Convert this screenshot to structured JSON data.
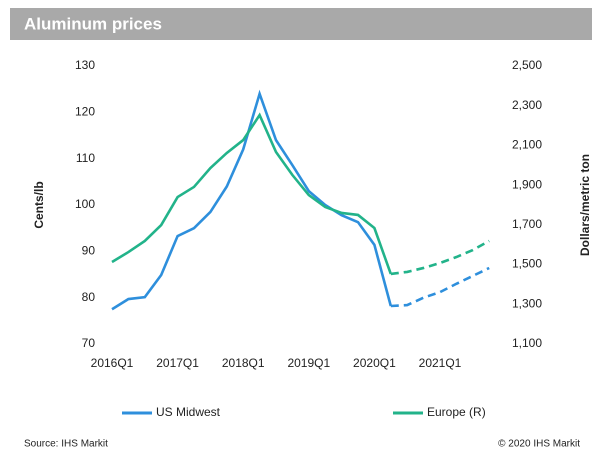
{
  "chart_data": {
    "type": "line",
    "title": "Aluminum prices",
    "y_label": "Cents/lb",
    "y2_label": "Dollars/metric ton",
    "source": "Source: IHS Markit",
    "copyright": "© 2020 IHS Markit",
    "categories": [
      "2016Q1",
      null,
      null,
      null,
      "2017Q1",
      null,
      null,
      null,
      "2018Q1",
      null,
      null,
      null,
      "2019Q1",
      null,
      null,
      null,
      "2020Q1",
      null,
      null,
      null,
      "2021Q1",
      null,
      null,
      null
    ],
    "dashed_from": 17,
    "ylim": [
      70,
      130
    ],
    "yticks": [
      70,
      80,
      90,
      100,
      110,
      120,
      130
    ],
    "y2lim": [
      1100,
      2500
    ],
    "y2ticks": [
      {
        "value": 1100,
        "label": "1,100"
      },
      {
        "value": 1300,
        "label": "1,300"
      },
      {
        "value": 1500,
        "label": "1,500"
      },
      {
        "value": 1700,
        "label": "1,700"
      },
      {
        "value": 1900,
        "label": "1,900"
      },
      {
        "value": 2100,
        "label": "2,100"
      },
      {
        "value": 2300,
        "label": "2,300"
      },
      {
        "value": 2500,
        "label": "2,500"
      }
    ],
    "series": [
      {
        "name": "US Midwest",
        "color": "#2e8fdc",
        "values": [
          77.5,
          79.7,
          80.1,
          84.9,
          93.3,
          95,
          98.5,
          104,
          112,
          124,
          114,
          108.6,
          103,
          100,
          97.8,
          96.3,
          91.4,
          78.2,
          78.4,
          80,
          81.2,
          83,
          84.7,
          86.4
        ]
      },
      {
        "name": "Europe (R)",
        "color": "#22b38a",
        "axis": "y2",
        "values": [
          1513,
          1563,
          1619,
          1699,
          1840,
          1891,
          1986,
          2062,
          2127,
          2253,
          2067,
          1951,
          1850,
          1790,
          1760,
          1750,
          1684,
          1453,
          1463,
          1483,
          1508,
          1538,
          1573,
          1619
        ]
      }
    ]
  }
}
